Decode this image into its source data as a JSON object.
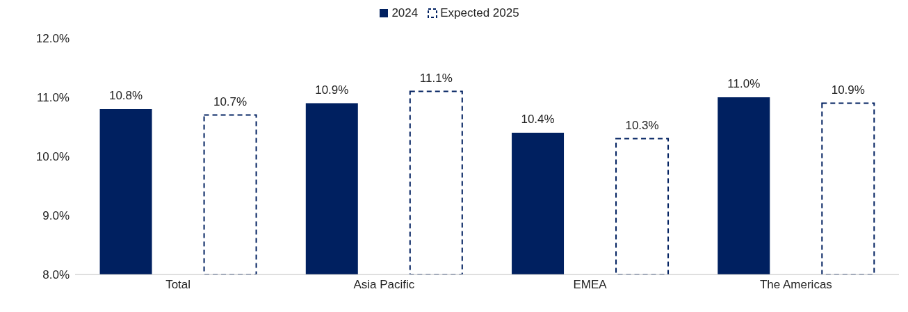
{
  "chart_data": {
    "type": "bar",
    "categories": [
      "Total",
      "Asia Pacific",
      "EMEA",
      "The Americas"
    ],
    "series": [
      {
        "name": "2024",
        "color": "#002060",
        "values": [
          10.8,
          10.9,
          10.4,
          11.0
        ],
        "value_labels": [
          "10.8%",
          "10.9%",
          "10.4%",
          "11.0%"
        ]
      },
      {
        "name": "Expected 2025",
        "color": "#002060",
        "line_style": "dashed",
        "values": [
          10.7,
          11.1,
          10.3,
          10.9
        ],
        "value_labels": [
          "10.7%",
          "11.1%",
          "10.3%",
          "10.9%"
        ]
      }
    ],
    "ylim": [
      8,
      12
    ],
    "yticks": [
      {
        "value": 8,
        "label": "8.0%"
      },
      {
        "value": 9,
        "label": "9.0%"
      },
      {
        "value": 10,
        "label": "10.0%"
      },
      {
        "value": 11,
        "label": "11.0%"
      },
      {
        "value": 12,
        "label": "12.0%"
      }
    ],
    "grid": false,
    "legend": "top"
  }
}
